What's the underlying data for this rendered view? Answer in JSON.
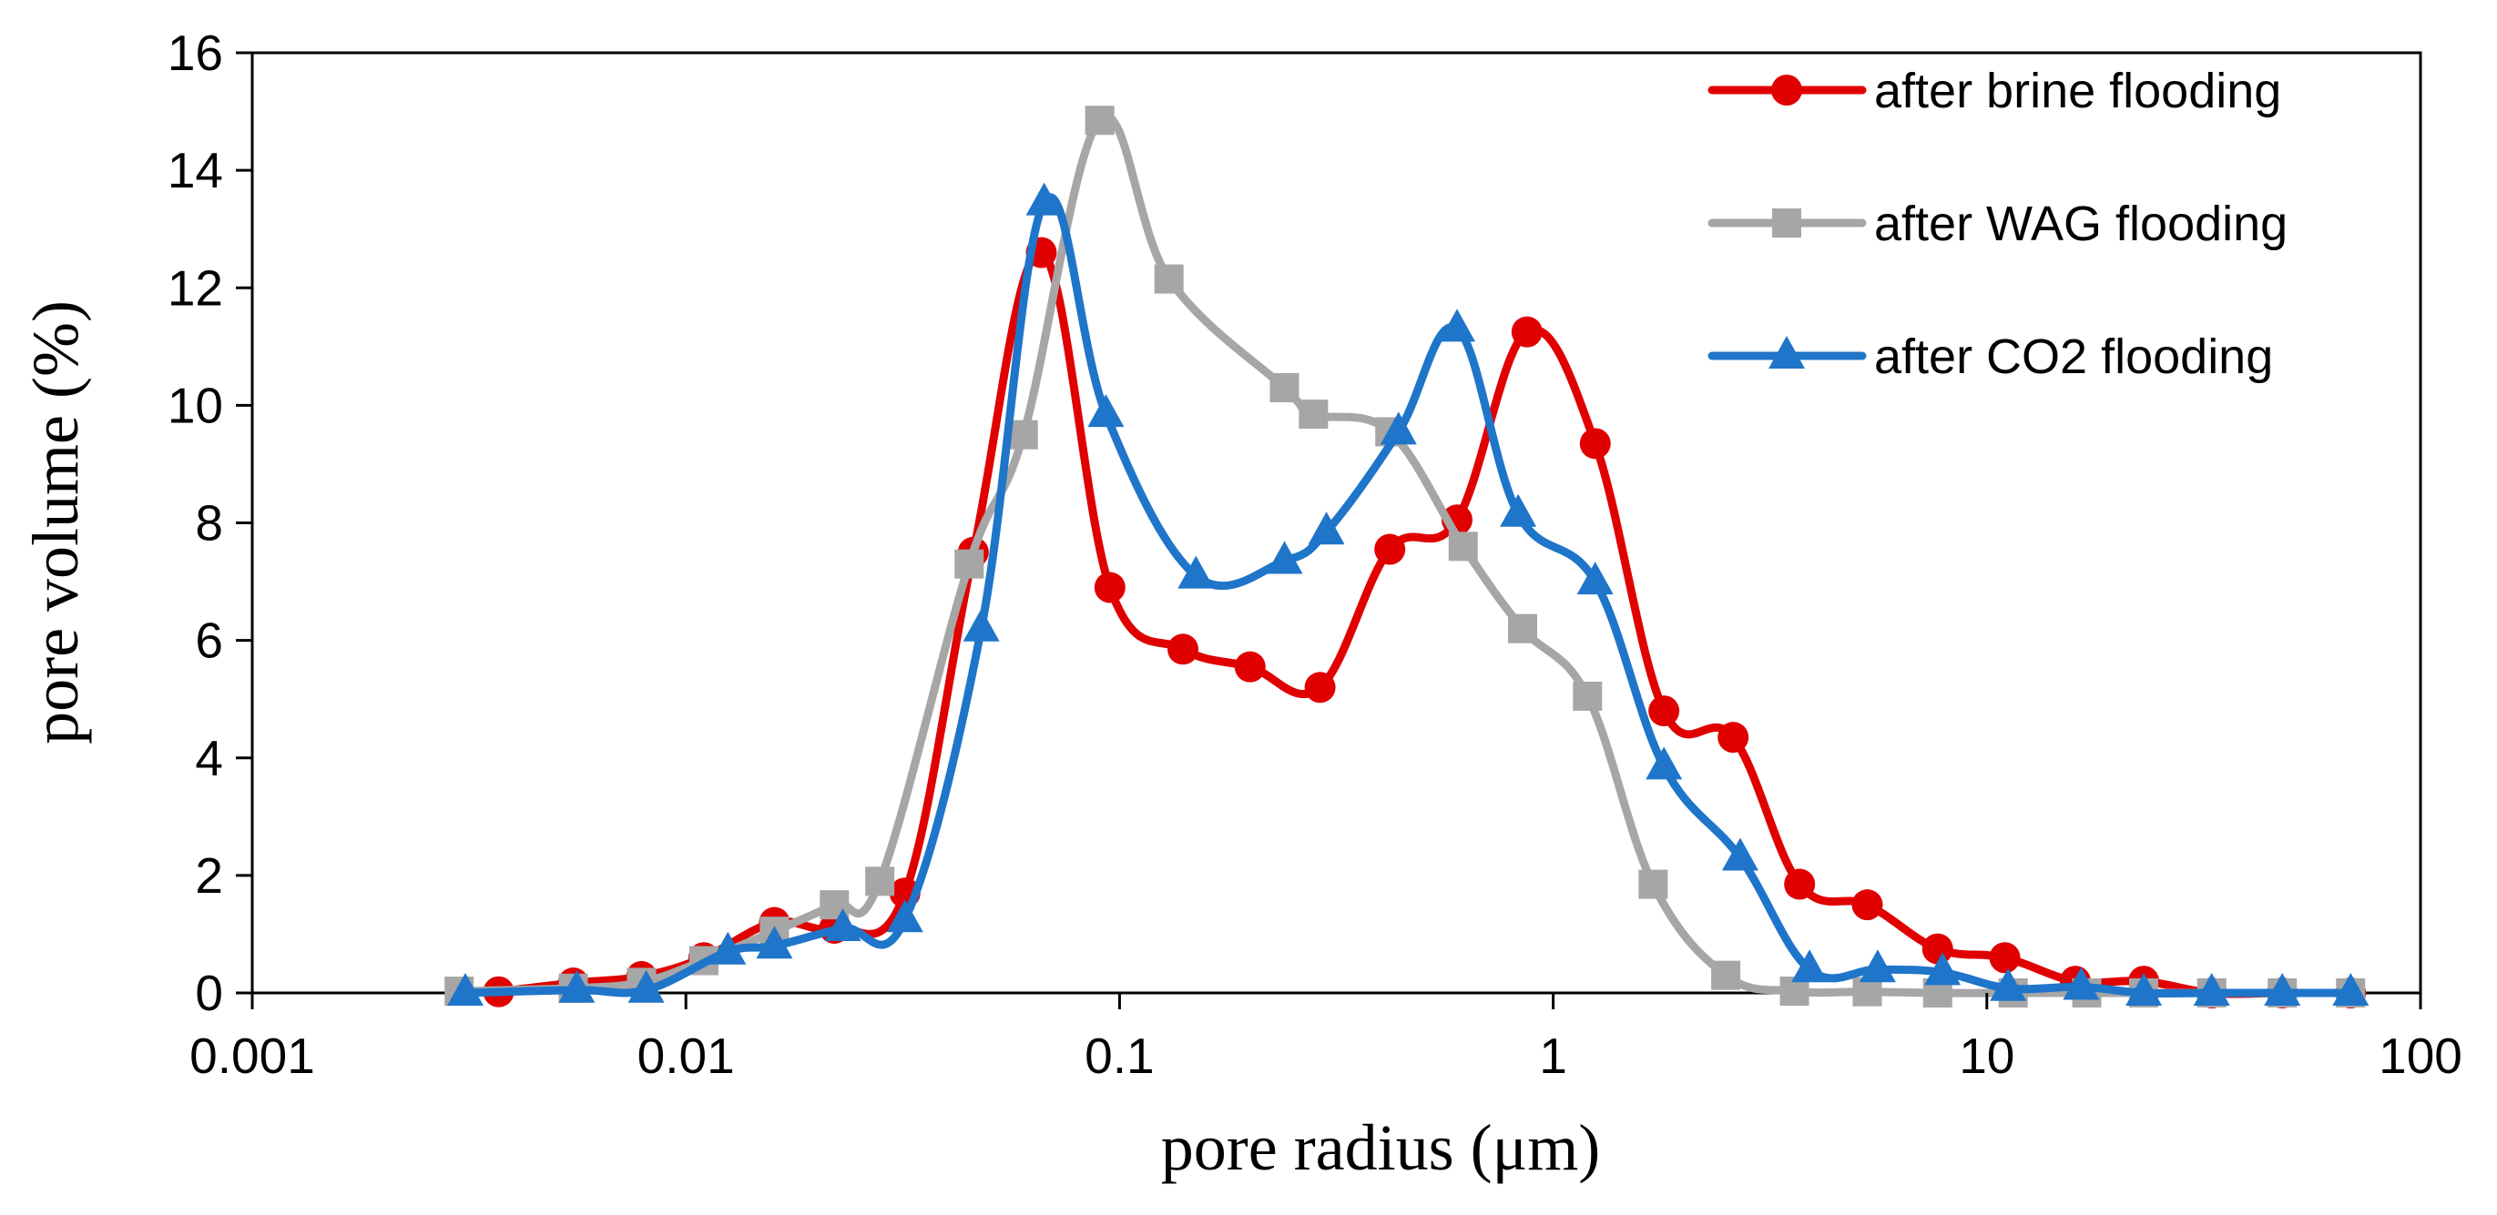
{
  "chart_data": {
    "type": "line",
    "title": "",
    "xlabel": "pore radius (μm)",
    "ylabel": "pore volume (%)",
    "xscale": "log",
    "xlim": [
      0.001,
      100
    ],
    "ylim": [
      0,
      16
    ],
    "xticks": [
      0.001,
      0.01,
      0.1,
      1,
      10,
      100
    ],
    "xtick_labels": [
      "0.001",
      "0.01",
      "0.1",
      "1",
      "10",
      "100"
    ],
    "yticks": [
      0,
      2,
      4,
      6,
      8,
      10,
      12,
      14,
      16
    ],
    "ytick_labels": [
      "0",
      "2",
      "4",
      "6",
      "8",
      "10",
      "12",
      "14",
      "16"
    ],
    "grid": false,
    "legend_position": "top-right",
    "series": [
      {
        "name": "after brine flooding",
        "color": "#e00000",
        "marker": "circle",
        "points": [
          [
            0.0037,
            0.02
          ],
          [
            0.0055,
            0.17
          ],
          [
            0.0079,
            0.28
          ],
          [
            0.011,
            0.6
          ],
          [
            0.016,
            1.2
          ],
          [
            0.022,
            1.1
          ],
          [
            0.032,
            1.7
          ],
          [
            0.046,
            7.5
          ],
          [
            0.066,
            12.6
          ],
          [
            0.095,
            6.9
          ],
          [
            0.14,
            5.85
          ],
          [
            0.2,
            5.55
          ],
          [
            0.29,
            5.2
          ],
          [
            0.42,
            7.55
          ],
          [
            0.6,
            8.05
          ],
          [
            0.87,
            11.25
          ],
          [
            1.25,
            9.35
          ],
          [
            1.8,
            4.8
          ],
          [
            2.6,
            4.35
          ],
          [
            3.7,
            1.85
          ],
          [
            5.3,
            1.5
          ],
          [
            7.7,
            0.75
          ],
          [
            11.0,
            0.6
          ],
          [
            16.0,
            0.2
          ],
          [
            23.0,
            0.2
          ],
          [
            33.0,
            0.0
          ],
          [
            48.0,
            0.0
          ],
          [
            69.0,
            0.0
          ]
        ]
      },
      {
        "name": "after WAG flooding",
        "color": "#a6a6a6",
        "marker": "square",
        "points": [
          [
            0.003,
            0.03
          ],
          [
            0.0055,
            0.08
          ],
          [
            0.0079,
            0.18
          ],
          [
            0.011,
            0.55
          ],
          [
            0.016,
            1.05
          ],
          [
            0.022,
            1.5
          ],
          [
            0.028,
            1.9
          ],
          [
            0.045,
            7.3
          ],
          [
            0.06,
            9.5
          ],
          [
            0.09,
            14.85
          ],
          [
            0.13,
            12.15
          ],
          [
            0.24,
            10.3
          ],
          [
            0.28,
            9.85
          ],
          [
            0.42,
            9.55
          ],
          [
            0.62,
            7.6
          ],
          [
            0.85,
            6.2
          ],
          [
            1.2,
            5.05
          ],
          [
            1.7,
            1.85
          ],
          [
            2.5,
            0.3
          ],
          [
            3.6,
            0.03
          ],
          [
            5.3,
            0.02
          ],
          [
            7.7,
            0.0
          ],
          [
            11.5,
            0.0
          ],
          [
            17.0,
            0.0
          ],
          [
            23.0,
            0.0
          ],
          [
            33.0,
            0.0
          ],
          [
            48.0,
            0.0
          ],
          [
            69.0,
            0.0
          ]
        ]
      },
      {
        "name": "after CO2 flooding",
        "color": "#1f75c9",
        "marker": "triangle",
        "points": [
          [
            0.0031,
            0.0
          ],
          [
            0.0056,
            0.05
          ],
          [
            0.0081,
            0.05
          ],
          [
            0.0125,
            0.7
          ],
          [
            0.016,
            0.8
          ],
          [
            0.023,
            1.1
          ],
          [
            0.032,
            1.25
          ],
          [
            0.048,
            6.2
          ],
          [
            0.067,
            13.45
          ],
          [
            0.093,
            9.85
          ],
          [
            0.15,
            7.1
          ],
          [
            0.24,
            7.35
          ],
          [
            0.3,
            7.85
          ],
          [
            0.44,
            9.55
          ],
          [
            0.6,
            11.3
          ],
          [
            0.83,
            8.15
          ],
          [
            1.25,
            7.0
          ],
          [
            1.8,
            3.85
          ],
          [
            2.7,
            2.3
          ],
          [
            3.9,
            0.4
          ],
          [
            5.6,
            0.4
          ],
          [
            7.9,
            0.35
          ],
          [
            11.2,
            0.08
          ],
          [
            16.5,
            0.1
          ],
          [
            23.0,
            0.0
          ],
          [
            33.0,
            0.0
          ],
          [
            48.0,
            0.0
          ],
          [
            69.0,
            0.0
          ]
        ]
      }
    ]
  }
}
